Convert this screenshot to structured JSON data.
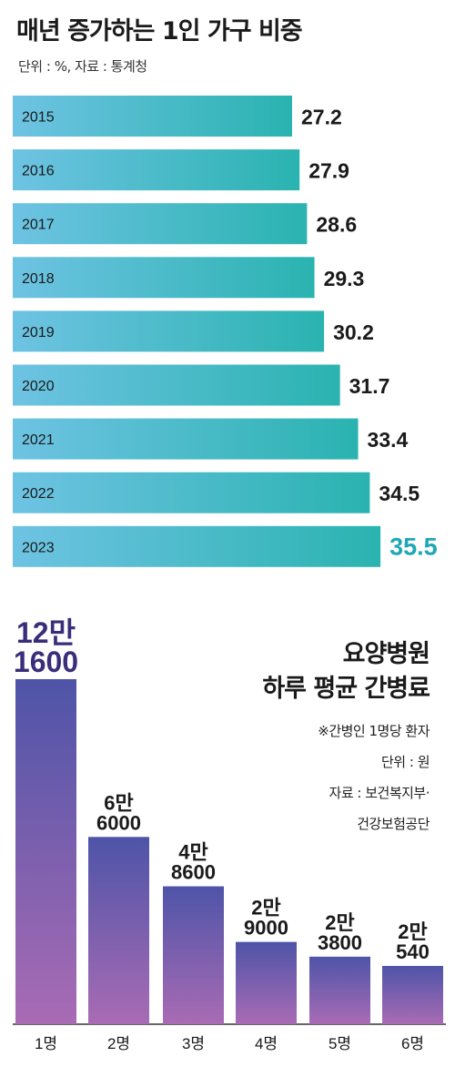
{
  "chart_data": [
    {
      "type": "bar",
      "orientation": "horizontal",
      "title": "매년 증가하는 1인 가구 비중",
      "subtitle": "단위 : %, 자료 : 통계청",
      "categories": [
        "2015",
        "2016",
        "2017",
        "2018",
        "2019",
        "2020",
        "2021",
        "2022",
        "2023"
      ],
      "values": [
        27.2,
        27.9,
        28.6,
        29.3,
        30.2,
        31.7,
        33.4,
        34.5,
        35.5
      ],
      "value_labels": [
        "27.2",
        "27.9",
        "28.6",
        "29.3",
        "30.2",
        "31.7",
        "33.4",
        "34.5",
        "35.5"
      ],
      "highlight_index": 8,
      "colors": {
        "bar_start": "#6ec3e3",
        "bar_end": "#2ab3b0",
        "label": "#1a1a1a",
        "highlight_label": "#1fa7b8",
        "year_text": "#1a1a1a"
      }
    },
    {
      "type": "bar",
      "orientation": "vertical",
      "title_lines": [
        "요양병원",
        "하루 평균 간병료"
      ],
      "notes": [
        "※간병인 1명당 환자",
        "단위 : 원",
        "자료 : 보건복지부·",
        "건강보험공단"
      ],
      "categories": [
        "1명",
        "2명",
        "3명",
        "4명",
        "5명",
        "6명"
      ],
      "values": [
        121600,
        66000,
        48600,
        29000,
        23800,
        20540
      ],
      "value_labels": [
        [
          "12만",
          "1600"
        ],
        [
          "6만",
          "6000"
        ],
        [
          "4만",
          "8600"
        ],
        [
          "2만",
          "9000"
        ],
        [
          "2만",
          "3800"
        ],
        [
          "2만",
          "540"
        ]
      ],
      "colors": {
        "bar_top": "#4e54a8",
        "bar_bottom": "#a96bb4",
        "label": "#1a1a1a",
        "highlight_label": "#3a2d7a",
        "axis": "#333333"
      }
    }
  ]
}
